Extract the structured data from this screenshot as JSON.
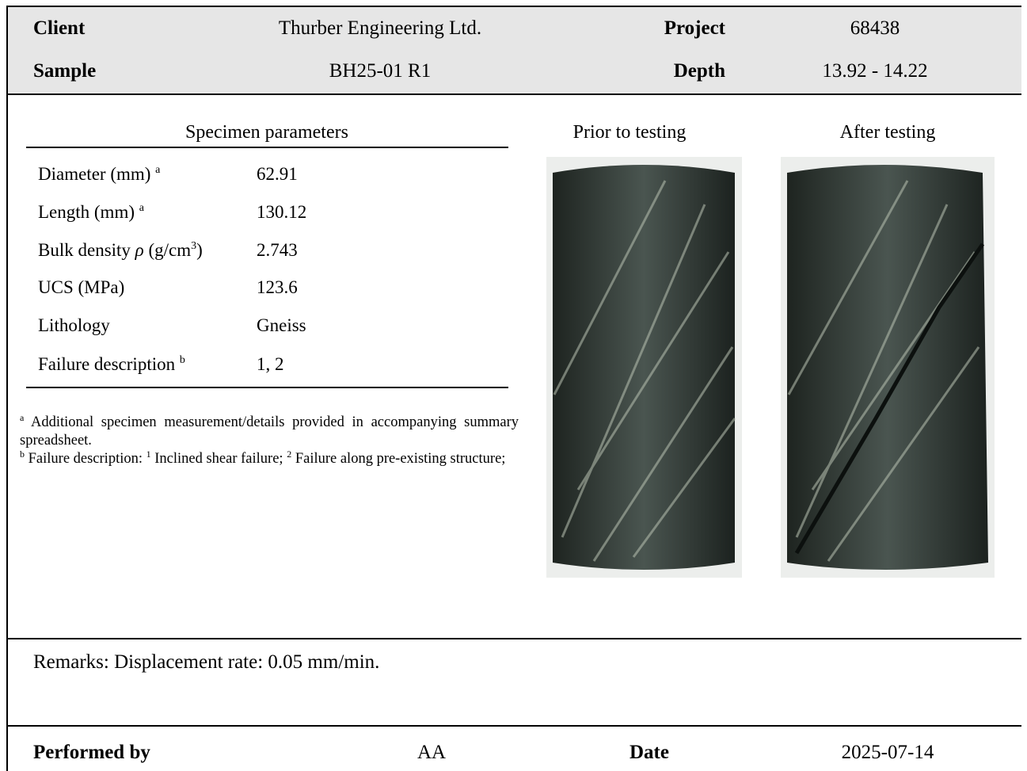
{
  "header": {
    "client_label": "Client",
    "client": "Thurber Engineering Ltd.",
    "project_label": "Project",
    "project": "68438",
    "sample_label": "Sample",
    "sample": "BH25-01 R1",
    "depth_label": "Depth",
    "depth": "13.92 - 14.22"
  },
  "specimen": {
    "title": "Specimen parameters",
    "rows": [
      {
        "label": "Diameter (mm)",
        "sup": "a",
        "value": "62.91"
      },
      {
        "label": "Length (mm)",
        "sup": "a",
        "value": "130.12"
      },
      {
        "label": "Bulk density",
        "symbol": "ρ",
        "unit": "(g/cm",
        "unit_sup": "3",
        "unit_end": ")",
        "value": "2.743"
      },
      {
        "label": "UCS (MPa)",
        "value": "123.6"
      },
      {
        "label": "Lithology",
        "value": "Gneiss"
      },
      {
        "label": "Failure description",
        "sup": "b",
        "value": "1, 2"
      }
    ]
  },
  "footnotes": [
    {
      "mark": "a",
      "parts": [
        "Additional specimen measurement/details provided in accompanying summary spreadsheet."
      ]
    },
    {
      "mark": "b",
      "parts": [
        "Failure description:",
        "1",
        "Inclined shear failure;",
        "2",
        "Failure along pre-existing structure;"
      ]
    }
  ],
  "photos": {
    "before": "Prior to testing",
    "after": "After testing"
  },
  "remarks": "Remarks: Displacement rate: 0.05 mm/min.",
  "footer": {
    "performed_label": "Performed by",
    "performed": "AA",
    "date_label": "Date",
    "date": "2025-07-14"
  }
}
